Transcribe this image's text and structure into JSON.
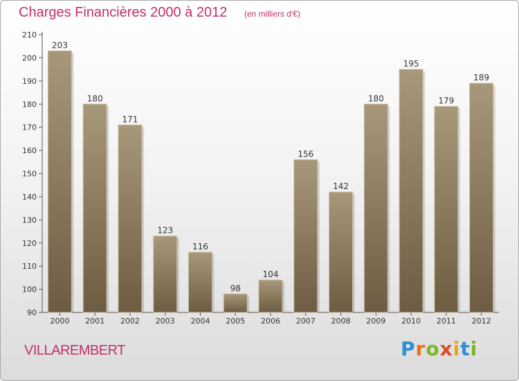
{
  "title": "Charges Financières 2000 à 2012",
  "subtitle": "(en milliers d'€)",
  "commune": "VILLAREMBERT",
  "logo": {
    "text": "Proxiti",
    "letters": [
      "P",
      "r",
      "o",
      "x",
      "i",
      "t",
      "i"
    ]
  },
  "colors": {
    "accent": "#c0306b",
    "bar_top": "#a8987a",
    "bar_bottom": "#6e5c42",
    "axis": "#555555"
  },
  "chart_data": {
    "type": "bar",
    "categories": [
      "2000",
      "2001",
      "2002",
      "2003",
      "2004",
      "2005",
      "2006",
      "2007",
      "2008",
      "2009",
      "2010",
      "2011",
      "2012"
    ],
    "values": [
      203,
      180,
      171,
      123,
      116,
      98,
      104,
      156,
      142,
      180,
      195,
      179,
      189
    ],
    "title": "Charges Financières 2000 à 2012",
    "subtitle": "(en milliers d'€)",
    "xlabel": "",
    "ylabel": "",
    "ylim": [
      90,
      210
    ],
    "yticks": [
      90,
      100,
      110,
      120,
      130,
      140,
      150,
      160,
      170,
      180,
      190,
      200,
      210
    ],
    "grid": false,
    "legend": "none"
  }
}
